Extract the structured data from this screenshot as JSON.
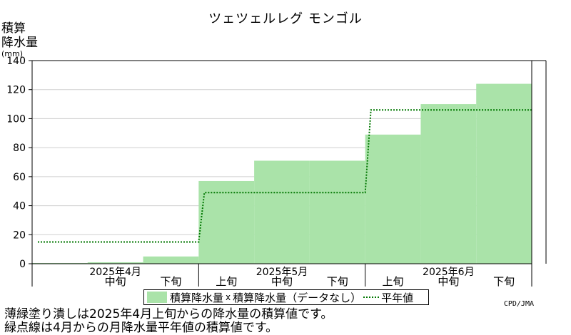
{
  "chart_data": {
    "type": "area",
    "title": "ツェツェルレグ モンゴル",
    "ylabel_lines": [
      "積算",
      "降水量"
    ],
    "yunit": "(mm)",
    "ylim": [
      0,
      140
    ],
    "yticks": [
      0,
      20,
      40,
      60,
      80,
      100,
      120,
      140
    ],
    "grid": true,
    "periods": [
      "2025年4月上旬",
      "2025年4月中旬",
      "2025年4月下旬",
      "2025年5月上旬",
      "2025年5月中旬",
      "2025年5月下旬",
      "2025年6月上旬",
      "2025年6月中旬",
      "2025年6月下旬"
    ],
    "x_tick_labels": [
      {
        "label": "中旬",
        "index": 1
      },
      {
        "label": "下旬",
        "index": 2
      },
      {
        "label": "上旬",
        "index": 3
      },
      {
        "label": "中旬",
        "index": 4
      },
      {
        "label": "下旬",
        "index": 5
      },
      {
        "label": "上旬",
        "index": 6
      },
      {
        "label": "中旬",
        "index": 7
      },
      {
        "label": "下旬",
        "index": 8
      }
    ],
    "month_labels": [
      {
        "label": "2025年4月",
        "index": 1
      },
      {
        "label": "2025年5月",
        "index": 4
      },
      {
        "label": "2025年6月",
        "index": 7
      }
    ],
    "series": [
      {
        "name": "積算降水量",
        "kind": "filled-step",
        "color": "#aae3a9",
        "values": [
          0.5,
          1,
          5,
          57,
          71,
          71,
          89,
          110,
          124
        ]
      },
      {
        "name": "積算降水量平年値",
        "kind": "dotted-step",
        "color": "#007700",
        "values": [
          15,
          15,
          15,
          49,
          49,
          49,
          106,
          106,
          106
        ]
      }
    ]
  },
  "legend": {
    "series1": "積算降水量",
    "mark": "x",
    "series2": "積算降水量（データなし）",
    "series3": "平年値"
  },
  "credit": "CPD/JMA",
  "notes": [
    "薄緑塗り潰しは2025年4月上旬からの降水量の積算値です。",
    "緑点線は4月からの月降水量平年値の積算値です。"
  ]
}
